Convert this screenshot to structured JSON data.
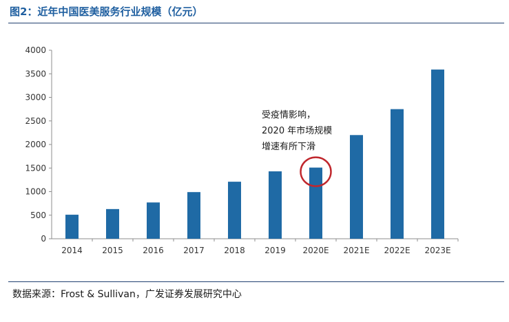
{
  "page": {
    "title": "图2：近年中国医美服务行业规模（亿元）",
    "source": "数据来源：Frost & Sullivan，广发证券发展研究中心"
  },
  "colors": {
    "bar": "#1f6aa5",
    "title": "#1f5fa0",
    "annotation_circle": "#c0272d"
  },
  "chart_data": {
    "type": "bar",
    "title": "",
    "xlabel": "",
    "ylabel": "",
    "categories": [
      "2014",
      "2015",
      "2016",
      "2017",
      "2018",
      "2019",
      "2020E",
      "2021E",
      "2022E",
      "2023E"
    ],
    "values": [
      510,
      630,
      770,
      990,
      1210,
      1430,
      1510,
      2200,
      2750,
      3590
    ],
    "ylim": [
      0,
      4000
    ],
    "yticks": [
      0,
      500,
      1000,
      1500,
      2000,
      2500,
      3000,
      3500,
      4000
    ],
    "grid": false,
    "legend": "none",
    "annotation": {
      "lines": [
        "受疫情影响，",
        "2020 年市场规模",
        "增速有所下滑"
      ],
      "target_category": "2020E"
    }
  }
}
